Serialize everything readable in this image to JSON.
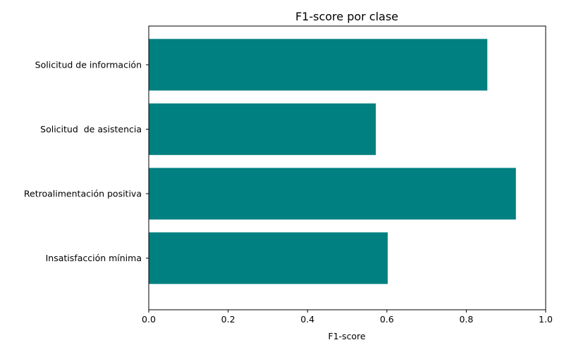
{
  "chart_data": {
    "type": "bar",
    "orientation": "horizontal",
    "title": "F1-score por clase",
    "xlabel": "F1-score",
    "ylabel": "",
    "categories": [
      "Solicitud de información",
      "Solicitud  de asistencia",
      "Retroalimentación positiva",
      "Insatisfacción mínima"
    ],
    "values": [
      0.853,
      0.572,
      0.925,
      0.602
    ],
    "xlim": [
      0,
      1
    ],
    "xticks": [
      "0.0",
      "0.2",
      "0.4",
      "0.6",
      "0.8",
      "1.0"
    ],
    "bar_color": "#008080",
    "grid": false,
    "legend": "none"
  }
}
